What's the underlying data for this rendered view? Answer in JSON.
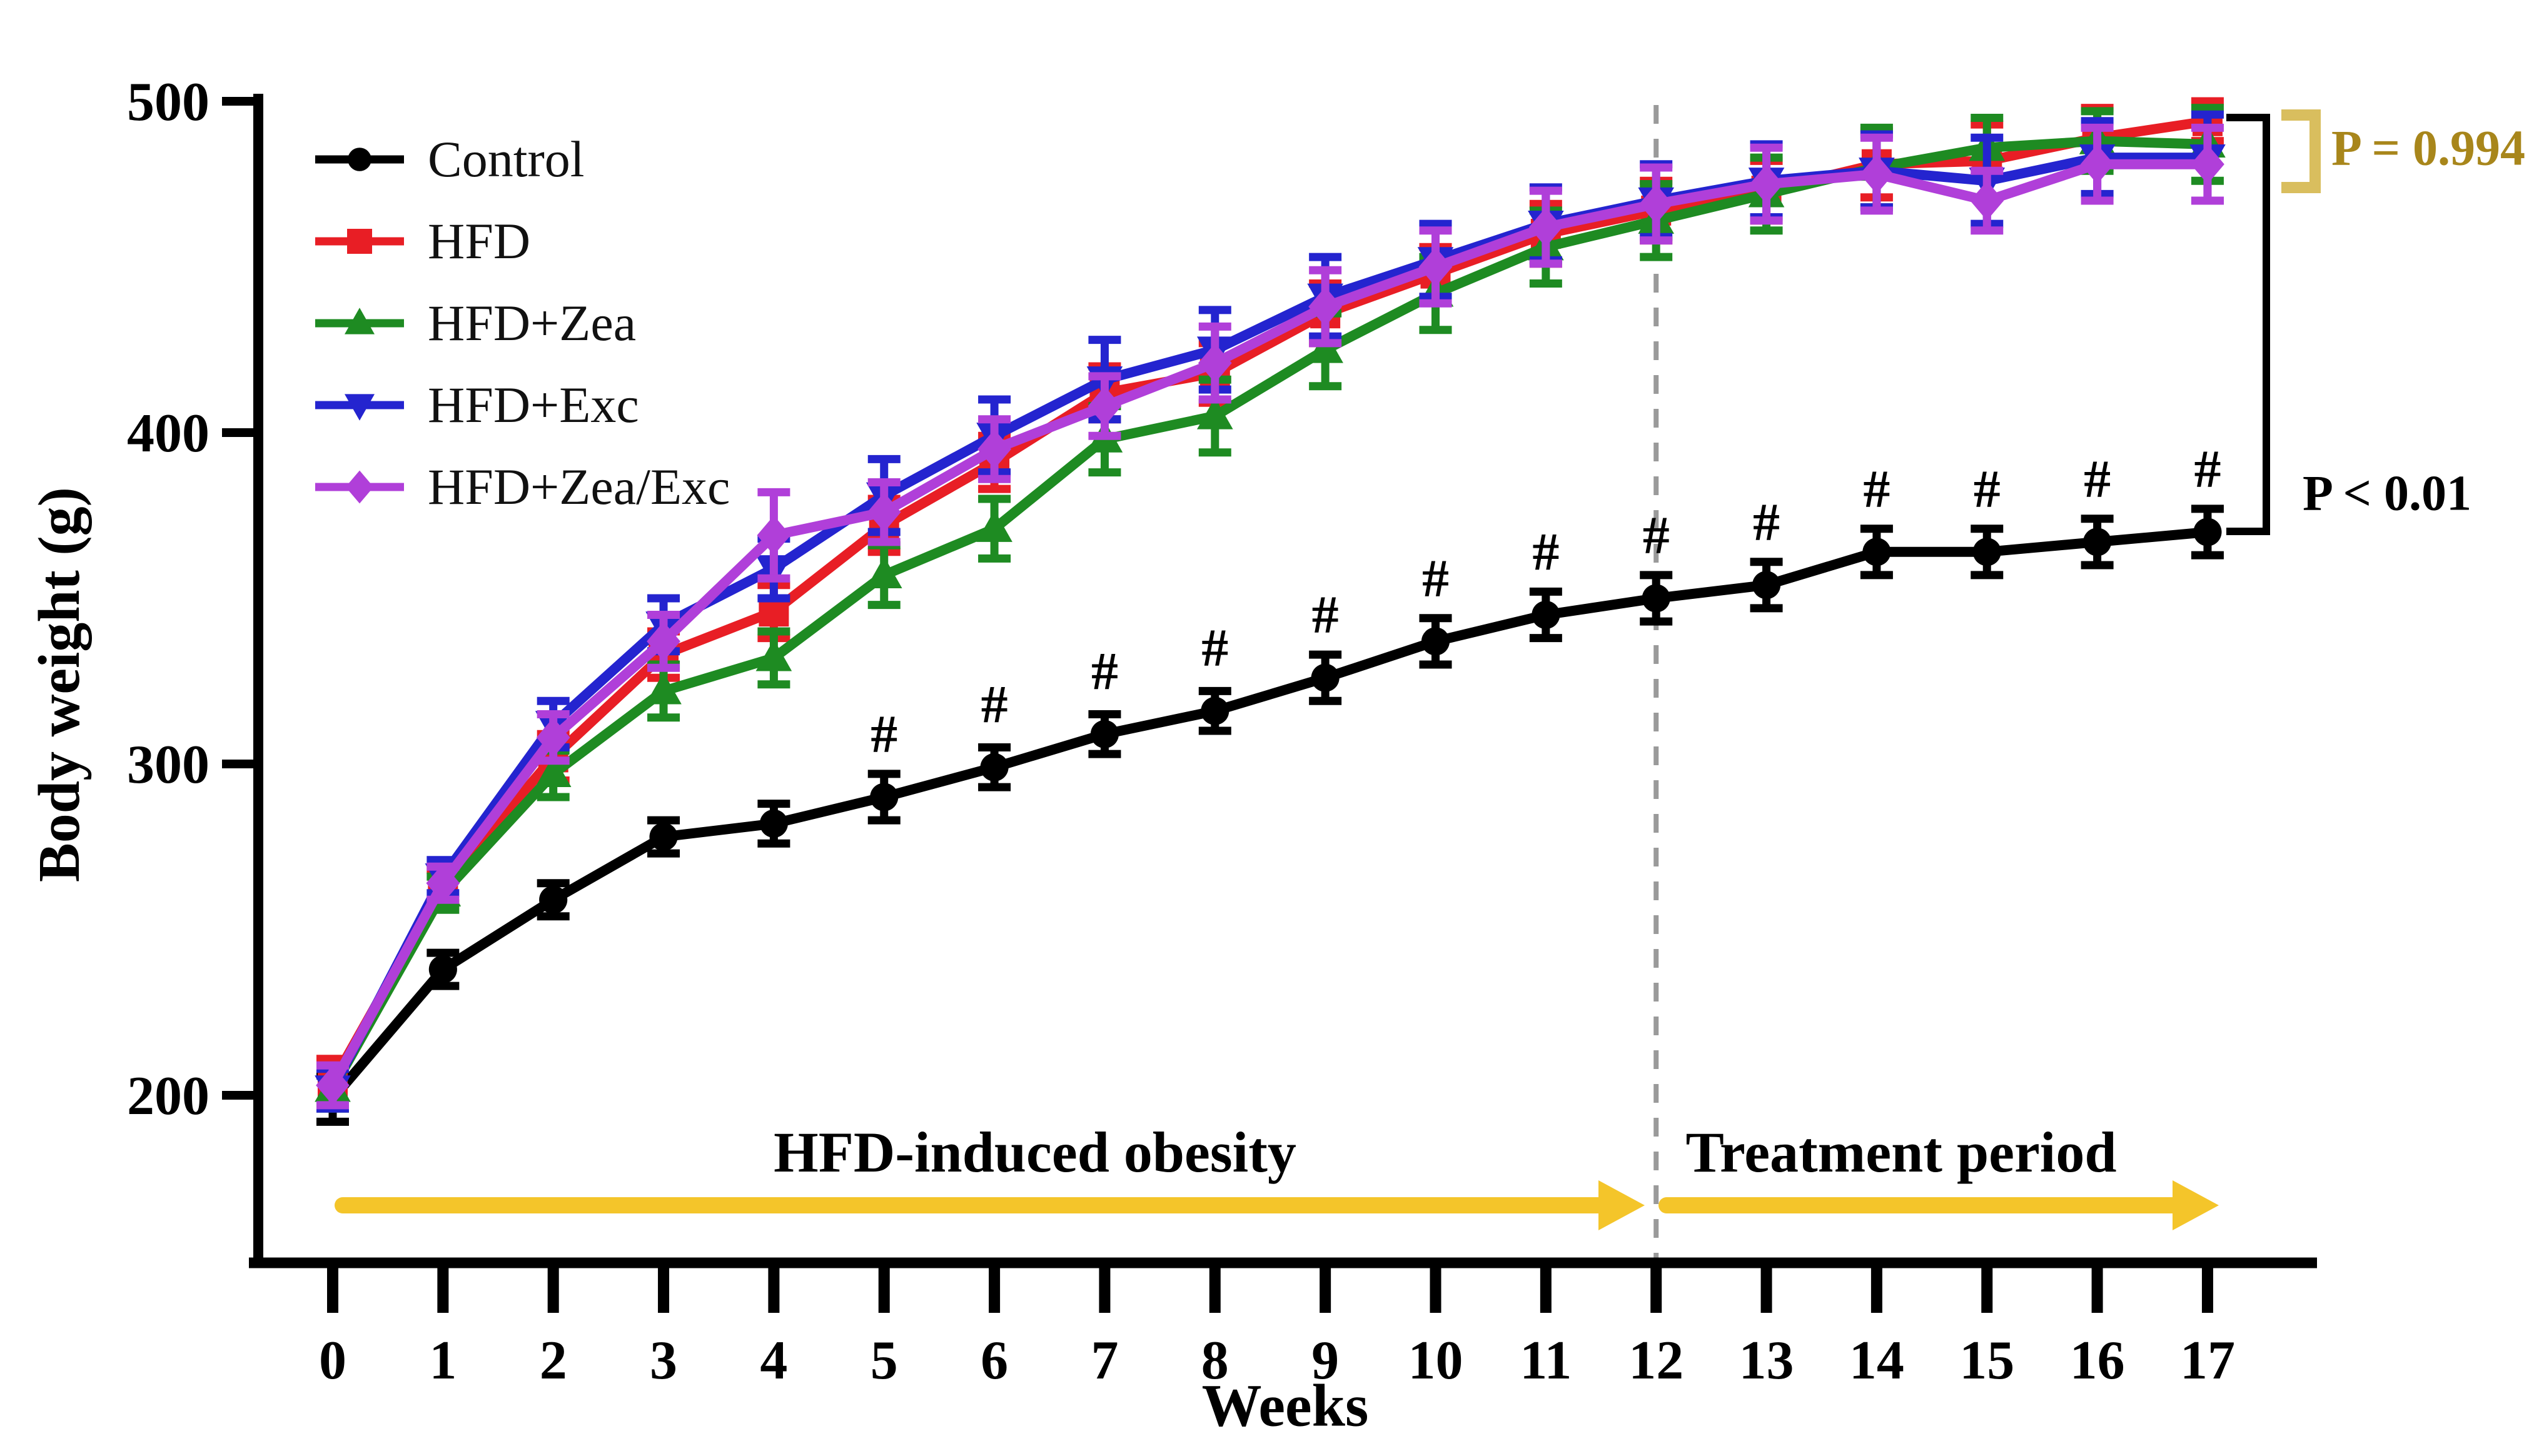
{
  "figure": {
    "background": "#ffffff"
  },
  "annotations": {
    "p_equal": {
      "text": "P = 0.994",
      "color": "#A8861B",
      "bracket_color": "#D9BE5E"
    },
    "p_less": {
      "text": "P < 0.01",
      "color": "#000000",
      "bracket_color": "#000000"
    },
    "period1": {
      "text": "HFD-induced obesity"
    },
    "period2": {
      "text": "Treatment period"
    },
    "arrow_color": "#F4C52A",
    "dashed_line_week": 12,
    "dashed_line_color": "#9a9a9a",
    "hash_symbol": "#",
    "hash_weeks": [
      5,
      6,
      7,
      8,
      9,
      10,
      11,
      12,
      13,
      14,
      15,
      16,
      17
    ]
  },
  "chart_data": {
    "type": "line",
    "title": "",
    "xlabel": "Weeks",
    "ylabel": "Body weight (g)",
    "ylim": [
      150,
      500
    ],
    "y_ticks": [
      200,
      300,
      400,
      500
    ],
    "x": [
      0,
      1,
      2,
      3,
      4,
      5,
      6,
      7,
      8,
      9,
      10,
      11,
      12,
      13,
      14,
      15,
      16,
      17
    ],
    "grid": "off",
    "legend_position": "upper-left-inside",
    "series": [
      {
        "name": "Control",
        "color": "#000000",
        "marker": "circle",
        "values": [
          199,
          238,
          259,
          278,
          282,
          290,
          299,
          309,
          316,
          326,
          337,
          345,
          350,
          354,
          364,
          364,
          367,
          370
        ],
        "err": [
          7,
          5,
          5,
          5,
          6,
          7,
          6,
          6,
          6,
          7,
          7,
          7,
          7,
          7,
          7,
          7,
          7,
          7
        ]
      },
      {
        "name": "HFD",
        "color": "#E81E25",
        "marker": "square",
        "values": [
          204,
          263,
          302,
          333,
          346,
          372,
          391,
          412,
          418,
          436,
          448,
          460,
          467,
          473,
          481,
          482,
          489,
          494
        ],
        "err": [
          7,
          5,
          7,
          7,
          8,
          8,
          8,
          8,
          9,
          9,
          8,
          9,
          9,
          9,
          10,
          11,
          9,
          6
        ]
      },
      {
        "name": "HFD+Zea",
        "color": "#1E8B22",
        "marker": "triangle-up",
        "values": [
          202,
          261,
          297,
          322,
          332,
          357,
          371,
          398,
          405,
          425,
          442,
          456,
          464,
          472,
          480,
          486,
          488,
          487
        ],
        "err": [
          6,
          5,
          7,
          8,
          8,
          9,
          9,
          10,
          11,
          11,
          11,
          11,
          11,
          11,
          12,
          9,
          9,
          11
        ]
      },
      {
        "name": "HFD+Exc",
        "color": "#2424CF",
        "marker": "triangle-down",
        "values": [
          202,
          266,
          312,
          342,
          359,
          381,
          399,
          416,
          425,
          441,
          452,
          463,
          470,
          476,
          479,
          476,
          483,
          483
        ],
        "err": [
          6,
          5,
          7,
          8,
          9,
          11,
          11,
          12,
          12,
          12,
          11,
          11,
          11,
          11,
          11,
          13,
          11,
          13
        ]
      },
      {
        "name": "HFD+Zea/Exc",
        "color": "#B03FD9",
        "marker": "diamond",
        "values": [
          203,
          264,
          308,
          337,
          369,
          376,
          395,
          408,
          421,
          438,
          450,
          462,
          469,
          475,
          478,
          470,
          481,
          481
        ],
        "err": [
          6,
          5,
          7,
          8,
          13,
          9,
          9,
          9,
          11,
          11,
          11,
          11,
          11,
          11,
          11,
          9,
          11,
          11
        ]
      }
    ]
  }
}
